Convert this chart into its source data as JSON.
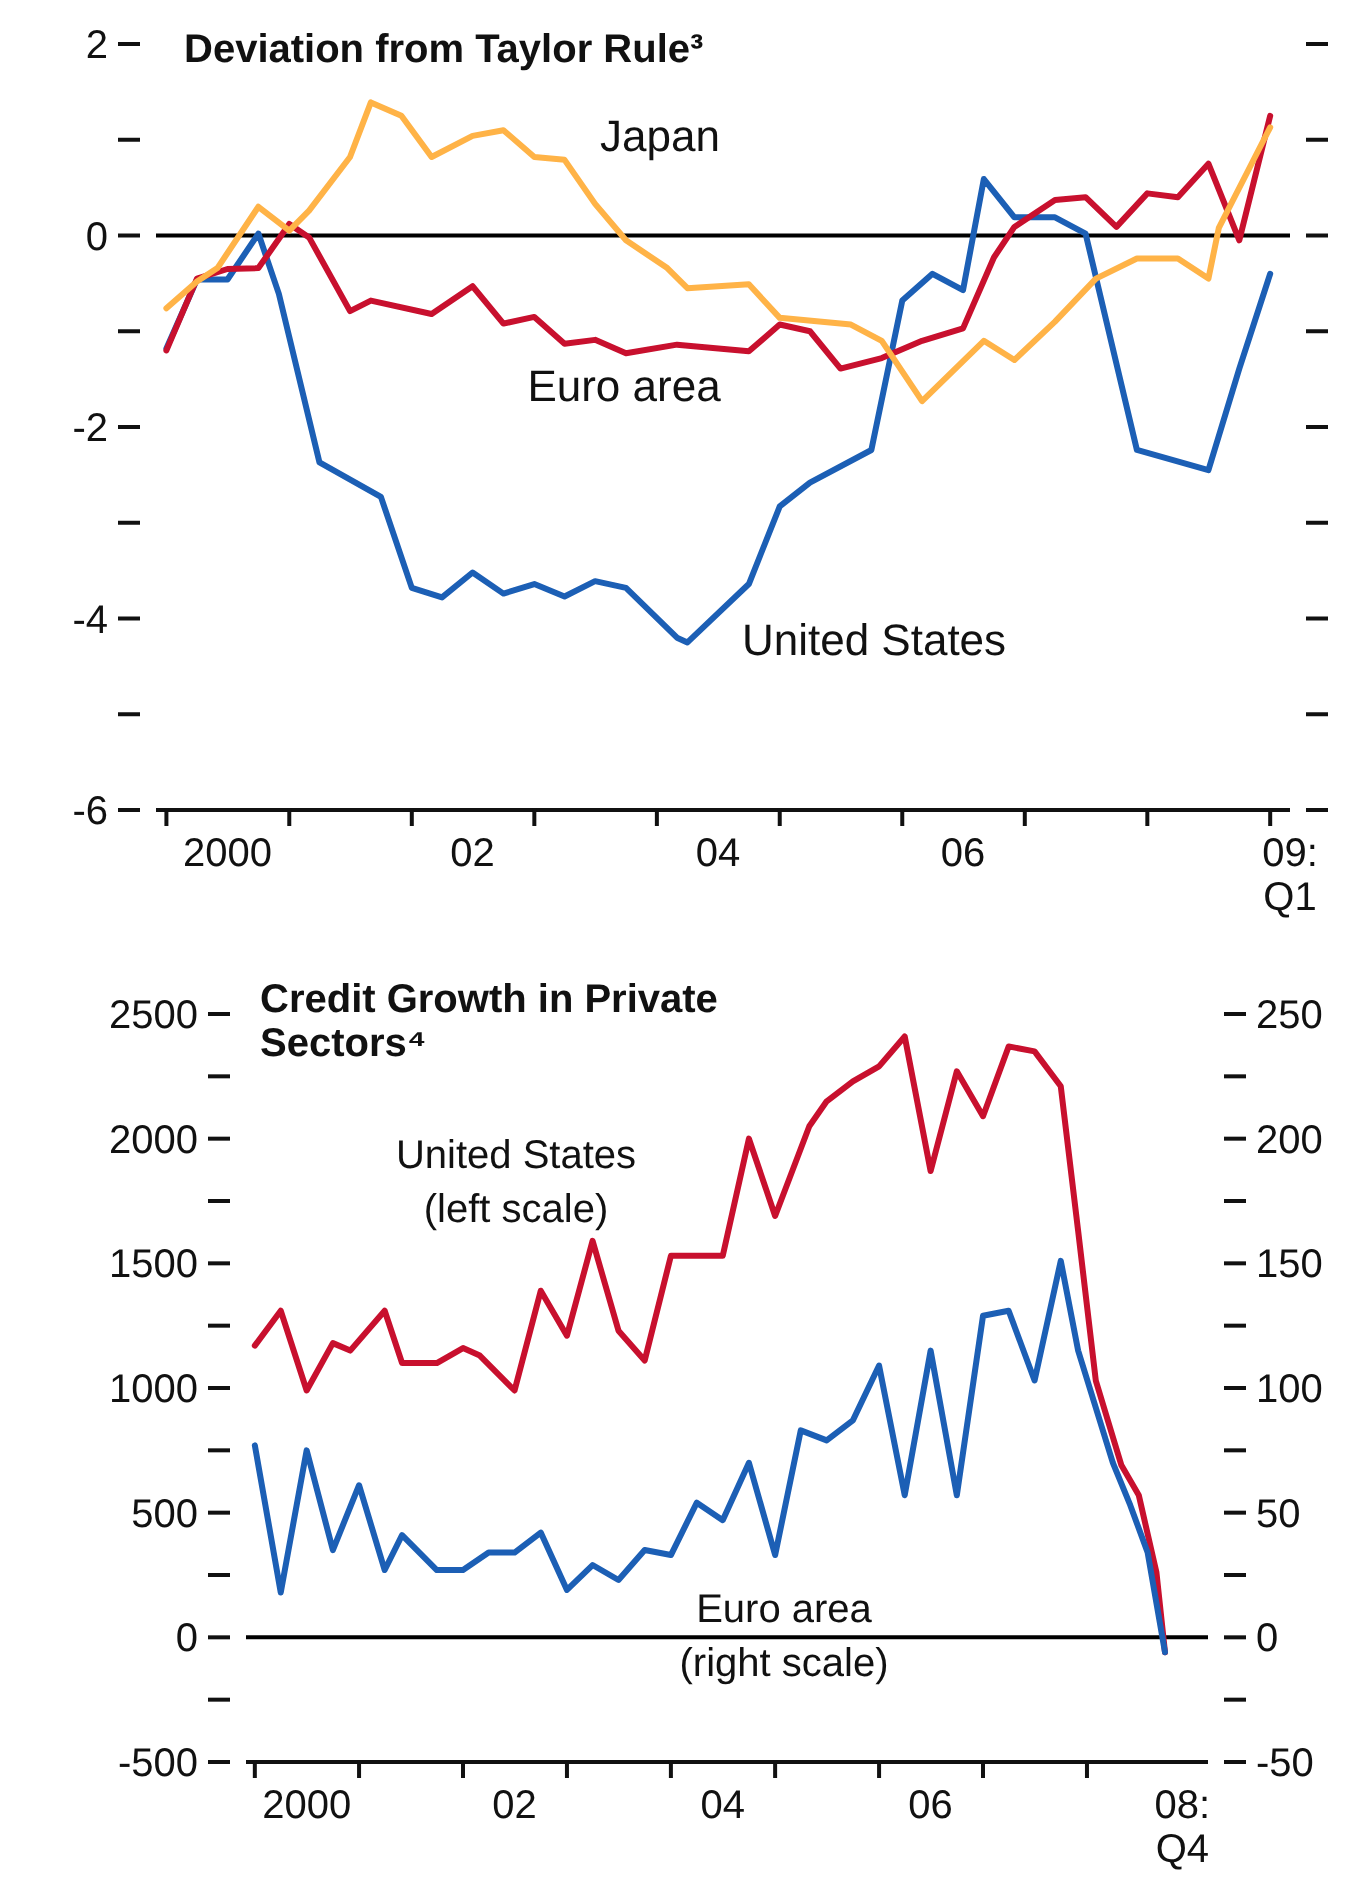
{
  "chart_data": [
    {
      "type": "line",
      "title": "Deviation from Taylor Rule³",
      "xlim": [
        "1999-12",
        "2009-03"
      ],
      "xticks": [
        {
          "value": "2000-01",
          "label": null
        },
        {
          "value": "2000-07",
          "label": "2000"
        },
        {
          "value": "2001-01",
          "label": null
        },
        {
          "value": "2002-01",
          "label": null
        },
        {
          "value": "2002-07",
          "label": "02"
        },
        {
          "value": "2003-01",
          "label": null
        },
        {
          "value": "2004-01",
          "label": null
        },
        {
          "value": "2004-07",
          "label": "04"
        },
        {
          "value": "2005-01",
          "label": null
        },
        {
          "value": "2006-01",
          "label": null
        },
        {
          "value": "2006-07",
          "label": "06"
        },
        {
          "value": "2007-01",
          "label": null
        },
        {
          "value": "2008-01",
          "label": null
        },
        {
          "value": "2009-01",
          "label": null
        },
        {
          "value": "2009-03",
          "label": "09:\nQ1"
        }
      ],
      "ylim": [
        -6,
        2
      ],
      "yticks": [
        2,
        {
          "value": 1,
          "label": null
        },
        0,
        {
          "value": -1,
          "label": null
        },
        -2,
        {
          "value": -3,
          "label": null
        },
        -4,
        {
          "value": -5,
          "label": null
        },
        -6
      ],
      "ref_lines": [
        {
          "axis": "y",
          "value": 0,
          "color": "#000000"
        }
      ],
      "series": [
        {
          "name": "United States",
          "color": "#1c5fb5",
          "x": [
            "2000-01",
            "2000-04",
            "2000-07",
            "2000-10",
            "2000-12",
            "2001-04",
            "2001-10",
            "2002-01",
            "2002-04",
            "2002-07",
            "2002-10",
            "2003-01",
            "2003-04",
            "2003-07",
            "2003-10",
            "2004-03",
            "2004-04",
            "2004-10",
            "2005-01",
            "2005-04",
            "2005-10",
            "2006-01",
            "2006-04",
            "2006-07",
            "2006-09",
            "2006-12",
            "2007-04",
            "2007-07",
            "2007-12",
            "2008-07",
            "2008-10",
            "2009-01"
          ],
          "values": [
            -1.18,
            -0.46,
            -0.46,
            0.02,
            -0.61,
            -2.37,
            -2.73,
            -3.68,
            -3.78,
            -3.52,
            -3.74,
            -3.64,
            -3.77,
            -3.61,
            -3.68,
            -4.2,
            -4.25,
            -3.64,
            -2.83,
            -2.58,
            -2.24,
            -0.68,
            -0.4,
            -0.57,
            0.59,
            0.19,
            0.19,
            0.02,
            -2.24,
            -2.45,
            -1.39,
            -0.4
          ]
        },
        {
          "name": "Euro area",
          "color": "#c8102e",
          "x": [
            "2000-01",
            "2000-04",
            "2000-07",
            "2000-10",
            "2001-01",
            "2001-03",
            "2001-07",
            "2001-09",
            "2002-03",
            "2002-07",
            "2002-10",
            "2003-01",
            "2003-04",
            "2003-07",
            "2003-10",
            "2004-03",
            "2004-10",
            "2005-01",
            "2005-04",
            "2005-07",
            "2005-11",
            "2006-03",
            "2006-07",
            "2006-10",
            "2006-12",
            "2007-04",
            "2007-07",
            "2007-10",
            "2008-01",
            "2008-04",
            "2008-07",
            "2008-10",
            "2009-01"
          ],
          "values": [
            -1.2,
            -0.45,
            -0.35,
            -0.34,
            0.12,
            -0.02,
            -0.79,
            -0.68,
            -0.82,
            -0.53,
            -0.92,
            -0.85,
            -1.13,
            -1.09,
            -1.23,
            -1.14,
            -1.21,
            -0.93,
            -1,
            -1.39,
            -1.28,
            -1.1,
            -0.97,
            -0.23,
            0.09,
            0.37,
            0.4,
            0.09,
            0.44,
            0.4,
            0.75,
            -0.05,
            1.25
          ]
        },
        {
          "name": "Japan",
          "color": "#ffb347",
          "x": [
            "2000-01",
            "2000-04",
            "2000-06",
            "2000-10",
            "2001-01",
            "2001-03",
            "2001-07",
            "2001-09",
            "2001-12",
            "2002-03",
            "2002-07",
            "2002-10",
            "2003-01",
            "2003-04",
            "2003-07",
            "2003-10",
            "2004-02",
            "2004-04",
            "2004-10",
            "2005-01",
            "2005-08",
            "2005-11",
            "2006-03",
            "2006-09",
            "2006-12",
            "2007-04",
            "2007-08",
            "2007-12",
            "2008-04",
            "2008-07",
            "2008-08",
            "2009-01"
          ],
          "values": [
            -0.76,
            -0.48,
            -0.34,
            0.3,
            0.05,
            0.26,
            0.82,
            1.39,
            1.25,
            0.82,
            1.04,
            1.1,
            0.82,
            0.79,
            0.33,
            -0.05,
            -0.34,
            -0.55,
            -0.51,
            -0.86,
            -0.93,
            -1.1,
            -1.73,
            -1.1,
            -1.3,
            -0.9,
            -0.45,
            -0.24,
            -0.24,
            -0.45,
            0.08,
            1.13
          ]
        }
      ]
    },
    {
      "type": "line",
      "title": "Credit Growth in Private Sectors⁴",
      "xlim": [
        "1999-12",
        "2009-03"
      ],
      "xticks": [
        {
          "value": "2000-01",
          "label": null
        },
        {
          "value": "2000-07",
          "label": "2000"
        },
        {
          "value": "2001-01",
          "label": null
        },
        {
          "value": "2002-01",
          "label": null
        },
        {
          "value": "2002-07",
          "label": "02"
        },
        {
          "value": "2003-01",
          "label": null
        },
        {
          "value": "2004-01",
          "label": null
        },
        {
          "value": "2004-07",
          "label": "04"
        },
        {
          "value": "2005-01",
          "label": null
        },
        {
          "value": "2006-01",
          "label": null
        },
        {
          "value": "2006-07",
          "label": "06"
        },
        {
          "value": "2007-01",
          "label": null
        },
        {
          "value": "2008-01",
          "label": null
        },
        {
          "value": "2008-12",
          "label": "08:\nQ4"
        }
      ],
      "ylim": [
        -500,
        2500
      ],
      "yticks": [
        2500,
        {
          "value": 2250,
          "label": null
        },
        2000,
        {
          "value": 1750,
          "label": null
        },
        1500,
        {
          "value": 1250,
          "label": null
        },
        1000,
        {
          "value": 750,
          "label": null
        },
        500,
        {
          "value": 250,
          "label": null
        },
        0,
        {
          "value": -250,
          "label": null
        },
        -500
      ],
      "y2lim": [
        -50,
        250
      ],
      "y2ticks": [
        250,
        {
          "value": 225,
          "label": null
        },
        200,
        {
          "value": 175,
          "label": null
        },
        150,
        {
          "value": 125,
          "label": null
        },
        100,
        {
          "value": 75,
          "label": null
        },
        50,
        {
          "value": 25,
          "label": null
        },
        0,
        {
          "value": -25,
          "label": null
        },
        -50
      ],
      "ref_lines": [
        {
          "axis": "y",
          "value": 0,
          "color": "#000000"
        }
      ],
      "series": [
        {
          "name": "United States\n(left scale)",
          "color": "#c8102e",
          "x": [
            "2000-01",
            "2000-04",
            "2000-07",
            "2000-10",
            "2000-12",
            "2001-04",
            "2001-06",
            "2001-10",
            "2002-01",
            "2002-03",
            "2002-07",
            "2002-10",
            "2003-01",
            "2003-04",
            "2003-07",
            "2003-10",
            "2004-01",
            "2004-07",
            "2004-10",
            "2005-01",
            "2005-05",
            "2005-07",
            "2005-10",
            "2006-01",
            "2006-04",
            "2006-07",
            "2006-10",
            "2007-01",
            "2007-04",
            "2007-07",
            "2007-10",
            "2007-12",
            "2008-02",
            "2008-05",
            "2008-07",
            "2008-09",
            "2008-10"
          ],
          "values": [
            1170,
            1310,
            990,
            1180,
            1150,
            1310,
            1100,
            1100,
            1160,
            1130,
            990,
            1390,
            1210,
            1590,
            1230,
            1110,
            1530,
            1530,
            2000,
            1690,
            2050,
            2150,
            2230,
            2290,
            2410,
            1870,
            2270,
            2090,
            2370,
            2350,
            2210,
            1630,
            1030,
            690,
            570,
            260,
            -60
          ]
        },
        {
          "name": "Euro area\n(right scale)",
          "color": "#1c5fb5",
          "axis": "y2",
          "x": [
            "2000-01",
            "2000-04",
            "2000-07",
            "2000-10",
            "2001-01",
            "2001-04",
            "2001-06",
            "2001-10",
            "2002-01",
            "2002-04",
            "2002-07",
            "2002-10",
            "2003-01",
            "2003-04",
            "2003-07",
            "2003-10",
            "2004-01",
            "2004-04",
            "2004-07",
            "2004-10",
            "2005-01",
            "2005-04",
            "2005-07",
            "2005-10",
            "2006-01",
            "2006-04",
            "2006-07",
            "2006-10",
            "2007-01",
            "2007-04",
            "2007-07",
            "2007-10",
            "2007-12",
            "2008-04",
            "2008-06",
            "2008-08",
            "2008-10"
          ],
          "values": [
            77,
            18,
            75,
            35,
            61,
            27,
            41,
            27,
            27,
            34,
            34,
            42,
            19,
            29,
            23,
            35,
            33,
            54,
            47,
            70,
            33,
            83,
            79,
            87,
            109,
            57,
            115,
            57,
            129,
            131,
            103,
            151,
            115,
            70,
            53,
            34,
            -6
          ]
        }
      ]
    }
  ]
}
